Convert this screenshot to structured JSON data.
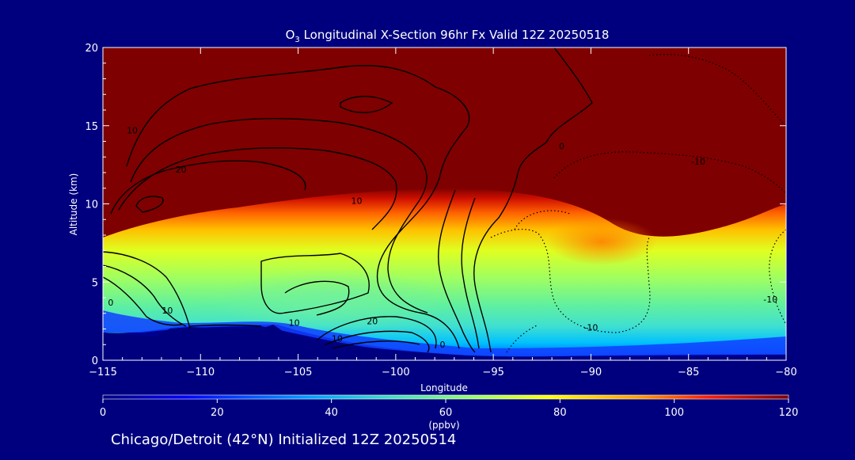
{
  "chart_data": {
    "type": "heatmap",
    "title_prefix": "O",
    "title_subscript": "3",
    "title_rest": " Longitudinal X-Section 96hr  Fx Valid 12Z 20250518",
    "xlabel": "Longitude",
    "ylabel": "Altitude (km)",
    "xlim": [
      -115,
      -80
    ],
    "ylim": [
      0,
      20
    ],
    "x_ticks": [
      -115,
      -110,
      -105,
      -100,
      -95,
      -90,
      -85,
      -80
    ],
    "x_tick_labels": [
      "−115",
      "−110",
      "−105",
      "−100",
      "−95",
      "−90",
      "−85",
      "−80"
    ],
    "y_ticks": [
      0,
      5,
      10,
      15,
      20
    ],
    "y_tick_labels": [
      "0",
      "5",
      "10",
      "15",
      "20"
    ],
    "colorbar": {
      "ticks": [
        0,
        20,
        40,
        60,
        80,
        100,
        120
      ],
      "tick_labels": [
        "0",
        "20",
        "40",
        "60",
        "80",
        "100",
        "120"
      ],
      "unit_label": "(ppbv)",
      "range": [
        0,
        120
      ],
      "colormap": [
        "#00007f",
        "#0000ff",
        "#00a0ff",
        "#40e0c0",
        "#a0ff60",
        "#ffff00",
        "#ffa000",
        "#ff2000",
        "#7f0000"
      ]
    },
    "ozone_profile_zones": [
      {
        "name": "surface_low",
        "value": 15
      },
      {
        "name": "boundary_layer",
        "value": 50
      },
      {
        "name": "free_troposphere",
        "value": 70
      },
      {
        "name": "tropopause_band",
        "value": 95
      },
      {
        "name": "stratosphere",
        "value": 120
      }
    ],
    "contour_labels": [
      {
        "text": "10",
        "lon": -113.5,
        "alt": 14.5
      },
      {
        "text": "20",
        "lon": -111.0,
        "alt": 12.0
      },
      {
        "text": "0",
        "lon": -91.5,
        "alt": 13.5
      },
      {
        "text": "10",
        "lon": -102.0,
        "alt": 10.0
      },
      {
        "text": "-10",
        "lon": -84.5,
        "alt": 12.5
      },
      {
        "text": "0",
        "lon": -114.6,
        "alt": 3.5
      },
      {
        "text": "10",
        "lon": -111.7,
        "alt": 3.0
      },
      {
        "text": "10",
        "lon": -105.2,
        "alt": 2.2
      },
      {
        "text": "20",
        "lon": -101.2,
        "alt": 2.3
      },
      {
        "text": "10",
        "lon": -103.0,
        "alt": 1.2
      },
      {
        "text": "0",
        "lon": -97.6,
        "alt": 0.8
      },
      {
        "text": "-10",
        "lon": -90.0,
        "alt": 1.9
      },
      {
        "text": "-10",
        "lon": -80.8,
        "alt": 3.7
      }
    ],
    "footer": "Chicago/Detroit (42°N) Initialized 12Z 20250514"
  }
}
